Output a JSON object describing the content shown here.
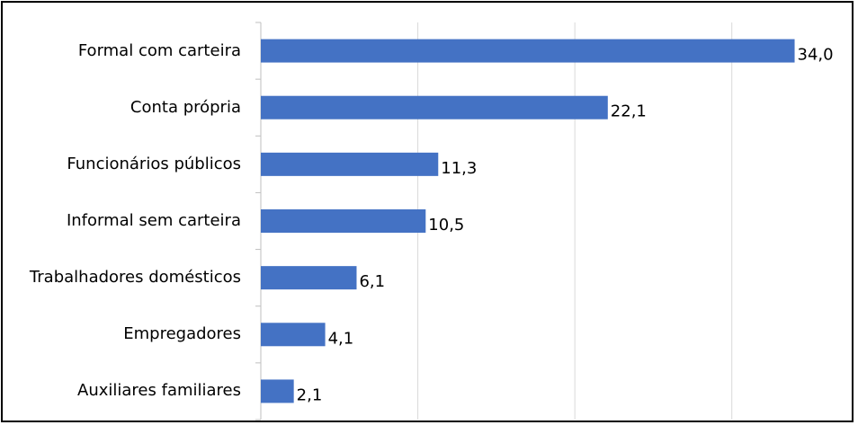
{
  "chart_data": {
    "type": "bar",
    "orientation": "horizontal",
    "categories": [
      "Formal com carteira",
      "Conta própria",
      "Funcionários públicos",
      "Informal sem carteira",
      "Trabalhadores domésticos",
      "Empregadores",
      "Auxiliares familiares"
    ],
    "values": [
      34.0,
      22.1,
      11.3,
      10.5,
      6.1,
      4.1,
      2.1
    ],
    "value_labels": [
      "34,0",
      "22,1",
      "11,3",
      "10,5",
      "6,1",
      "4,1",
      "2,1"
    ],
    "color": "#4472c4",
    "xlim": [
      0,
      35
    ],
    "xticks": [
      0,
      10,
      20,
      30
    ],
    "grid": true
  }
}
